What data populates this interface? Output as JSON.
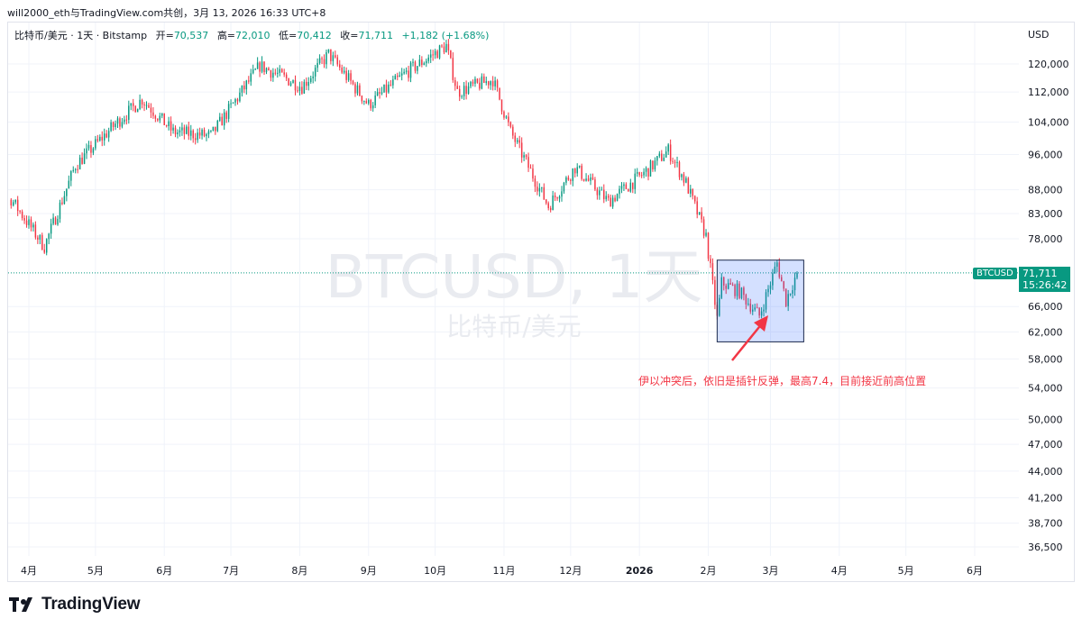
{
  "header": {
    "caption": "will2000_eth与TradingView.com共创，3月 13, 2026 16:33 UTC+8",
    "symbol_line": "比特币/美元 · 1天 · Bitstamp",
    "open_label": "开=",
    "open_value": "70,537",
    "high_label": "高=",
    "high_value": "72,010",
    "low_label": "低=",
    "low_value": "70,412",
    "close_label": "收=",
    "close_value": "71,711",
    "change_value": "+1,182 (+1.68%)",
    "currency": "USD"
  },
  "watermark": {
    "main": "BTCUSD, 1天",
    "sub": "比特币/美元"
  },
  "price_tag": {
    "symbol": "BTCUSD",
    "price": "71,711",
    "countdown": "15:26:42"
  },
  "annotation": {
    "text": "伊以冲突后，依旧是插针反弹，最高7.4，目前接近前高位置",
    "color": "#f23645"
  },
  "brand": {
    "name": "TradingView"
  },
  "colors": {
    "up": "#089981",
    "down": "#f23645",
    "box": "#2962ff",
    "grid": "#f0f3fa"
  },
  "chart_data": {
    "type": "candlestick",
    "scale": "log",
    "ylabel": "USD",
    "y_ticks": [
      120000,
      112000,
      104000,
      96000,
      88000,
      83000,
      78000,
      66000,
      62000,
      58000,
      54000,
      50000,
      47000,
      44000,
      41200,
      38700,
      36500
    ],
    "y_tick_labels": [
      "120,000",
      "112,000",
      "104,000",
      "96,000",
      "88,000",
      "83,000",
      "78,000",
      "66,000",
      "62,000",
      "58,000",
      "54,000",
      "50,000",
      "47,000",
      "44,000",
      "41,200",
      "38,700",
      "36,500"
    ],
    "x_ticks": [
      {
        "date": "2025-04-01",
        "label": "4月"
      },
      {
        "date": "2025-05-01",
        "label": "5月"
      },
      {
        "date": "2025-06-01",
        "label": "6月"
      },
      {
        "date": "2025-07-01",
        "label": "7月"
      },
      {
        "date": "2025-08-01",
        "label": "8月"
      },
      {
        "date": "2025-09-01",
        "label": "9月"
      },
      {
        "date": "2025-10-01",
        "label": "10月"
      },
      {
        "date": "2025-11-01",
        "label": "11月"
      },
      {
        "date": "2025-12-01",
        "label": "12月"
      },
      {
        "date": "2026-01-01",
        "label": "2026",
        "bold": true
      },
      {
        "date": "2026-02-01",
        "label": "2月"
      },
      {
        "date": "2026-03-01",
        "label": "3月"
      },
      {
        "date": "2026-04-01",
        "label": "4月"
      },
      {
        "date": "2026-05-01",
        "label": "5月"
      },
      {
        "date": "2026-06-01",
        "label": "6月"
      }
    ],
    "close_anchors": [
      {
        "date": "2025-03-10",
        "close": 82000
      },
      {
        "date": "2025-03-24",
        "close": 86000
      },
      {
        "date": "2025-04-08",
        "close": 76500
      },
      {
        "date": "2025-04-22",
        "close": 93500
      },
      {
        "date": "2025-05-10",
        "close": 103500
      },
      {
        "date": "2025-05-22",
        "close": 110000
      },
      {
        "date": "2025-06-05",
        "close": 101500
      },
      {
        "date": "2025-06-22",
        "close": 100500
      },
      {
        "date": "2025-07-14",
        "close": 119500
      },
      {
        "date": "2025-08-02",
        "close": 113500
      },
      {
        "date": "2025-08-14",
        "close": 123000
      },
      {
        "date": "2025-09-01",
        "close": 108500
      },
      {
        "date": "2025-09-18",
        "close": 117500
      },
      {
        "date": "2025-10-06",
        "close": 125500
      },
      {
        "date": "2025-10-11",
        "close": 112000
      },
      {
        "date": "2025-10-27",
        "close": 115500
      },
      {
        "date": "2025-11-04",
        "close": 101500
      },
      {
        "date": "2025-11-21",
        "close": 84500
      },
      {
        "date": "2025-12-03",
        "close": 93000
      },
      {
        "date": "2025-12-18",
        "close": 85500
      },
      {
        "date": "2026-01-05",
        "close": 92500
      },
      {
        "date": "2026-01-14",
        "close": 97000
      },
      {
        "date": "2026-01-22",
        "close": 89500
      },
      {
        "date": "2026-01-31",
        "close": 78500
      },
      {
        "date": "2026-02-05",
        "close": 64000
      },
      {
        "date": "2026-02-07",
        "close": 70000
      },
      {
        "date": "2026-02-15",
        "close": 68500
      },
      {
        "date": "2026-02-24",
        "close": 64500
      },
      {
        "date": "2026-03-04",
        "close": 73500
      },
      {
        "date": "2026-03-08",
        "close": 67000
      },
      {
        "date": "2026-03-13",
        "close": 71711
      }
    ],
    "last_price": 71711,
    "highlight_box": {
      "from": "2026-02-05",
      "to": "2026-03-16",
      "high": 74000,
      "low": 60500
    }
  }
}
